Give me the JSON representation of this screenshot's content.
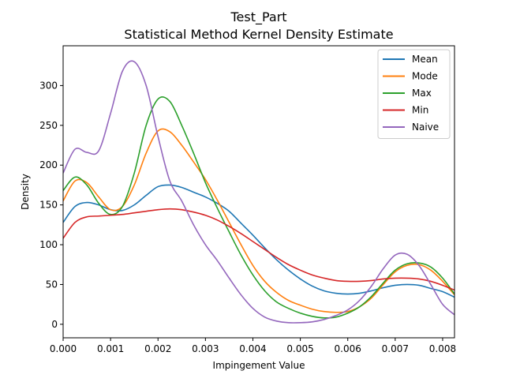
{
  "chart_data": {
    "type": "line",
    "title": "Test_Part",
    "subtitle": "Statistical Method Kernel Density Estimate",
    "xlabel": "Impingement Value",
    "ylabel": "Density",
    "xlim": [
      0.0,
      0.00825
    ],
    "ylim": [
      -17,
      350
    ],
    "xticks": [
      0.0,
      0.001,
      0.002,
      0.003,
      0.004,
      0.005,
      0.006,
      0.007,
      0.008
    ],
    "xtick_labels": [
      "0.000",
      "0.001",
      "0.002",
      "0.003",
      "0.004",
      "0.005",
      "0.006",
      "0.007",
      "0.008"
    ],
    "yticks": [
      0,
      50,
      100,
      150,
      200,
      250,
      300
    ],
    "ytick_labels": [
      "0",
      "50",
      "100",
      "150",
      "200",
      "250",
      "300"
    ],
    "grid": false,
    "legend_position": "top-right",
    "x": [
      0.0,
      0.00025,
      0.0005,
      0.00075,
      0.001,
      0.00125,
      0.0015,
      0.00175,
      0.002,
      0.00225,
      0.0025,
      0.00275,
      0.003,
      0.00325,
      0.0035,
      0.00375,
      0.004,
      0.00425,
      0.0045,
      0.00475,
      0.005,
      0.00525,
      0.0055,
      0.00575,
      0.006,
      0.00625,
      0.0065,
      0.00675,
      0.007,
      0.00725,
      0.0075,
      0.00775,
      0.008,
      0.00825
    ],
    "series": [
      {
        "name": "Mean",
        "color": "#1f77b4",
        "values": [
          128,
          148,
          153,
          150,
          144,
          143,
          150,
          162,
          173,
          175,
          172,
          166,
          160,
          152,
          142,
          127,
          112,
          96,
          81,
          68,
          57,
          48,
          42,
          39,
          38,
          39,
          42,
          46,
          49,
          50,
          49,
          45,
          41,
          34
        ]
      },
      {
        "name": "Mode",
        "color": "#ff7f0e",
        "values": [
          155,
          180,
          178,
          160,
          144,
          148,
          175,
          215,
          243,
          242,
          225,
          204,
          182,
          156,
          128,
          100,
          74,
          54,
          40,
          30,
          24,
          19,
          16,
          15,
          16,
          22,
          33,
          50,
          66,
          74,
          75,
          68,
          54,
          37
        ]
      },
      {
        "name": "Max",
        "color": "#2ca02c",
        "values": [
          168,
          185,
          175,
          152,
          138,
          148,
          190,
          250,
          283,
          280,
          250,
          215,
          178,
          146,
          116,
          87,
          62,
          42,
          28,
          20,
          14,
          10,
          8,
          9,
          14,
          22,
          35,
          52,
          68,
          76,
          77,
          72,
          58,
          38
        ]
      },
      {
        "name": "Min",
        "color": "#d62728",
        "values": [
          108,
          128,
          135,
          136,
          137,
          138,
          140,
          142,
          144,
          145,
          144,
          141,
          137,
          131,
          123,
          114,
          104,
          94,
          84,
          75,
          68,
          62,
          58,
          55,
          54,
          54,
          55,
          57,
          58,
          58,
          57,
          54,
          49,
          43
        ]
      },
      {
        "name": "Naive",
        "color": "#9467bd",
        "values": [
          190,
          220,
          216,
          218,
          265,
          318,
          330,
          300,
          236,
          180,
          155,
          125,
          100,
          80,
          58,
          37,
          20,
          9,
          4,
          2,
          2,
          3,
          6,
          11,
          18,
          30,
          48,
          70,
          87,
          88,
          74,
          50,
          25,
          12
        ]
      }
    ]
  }
}
